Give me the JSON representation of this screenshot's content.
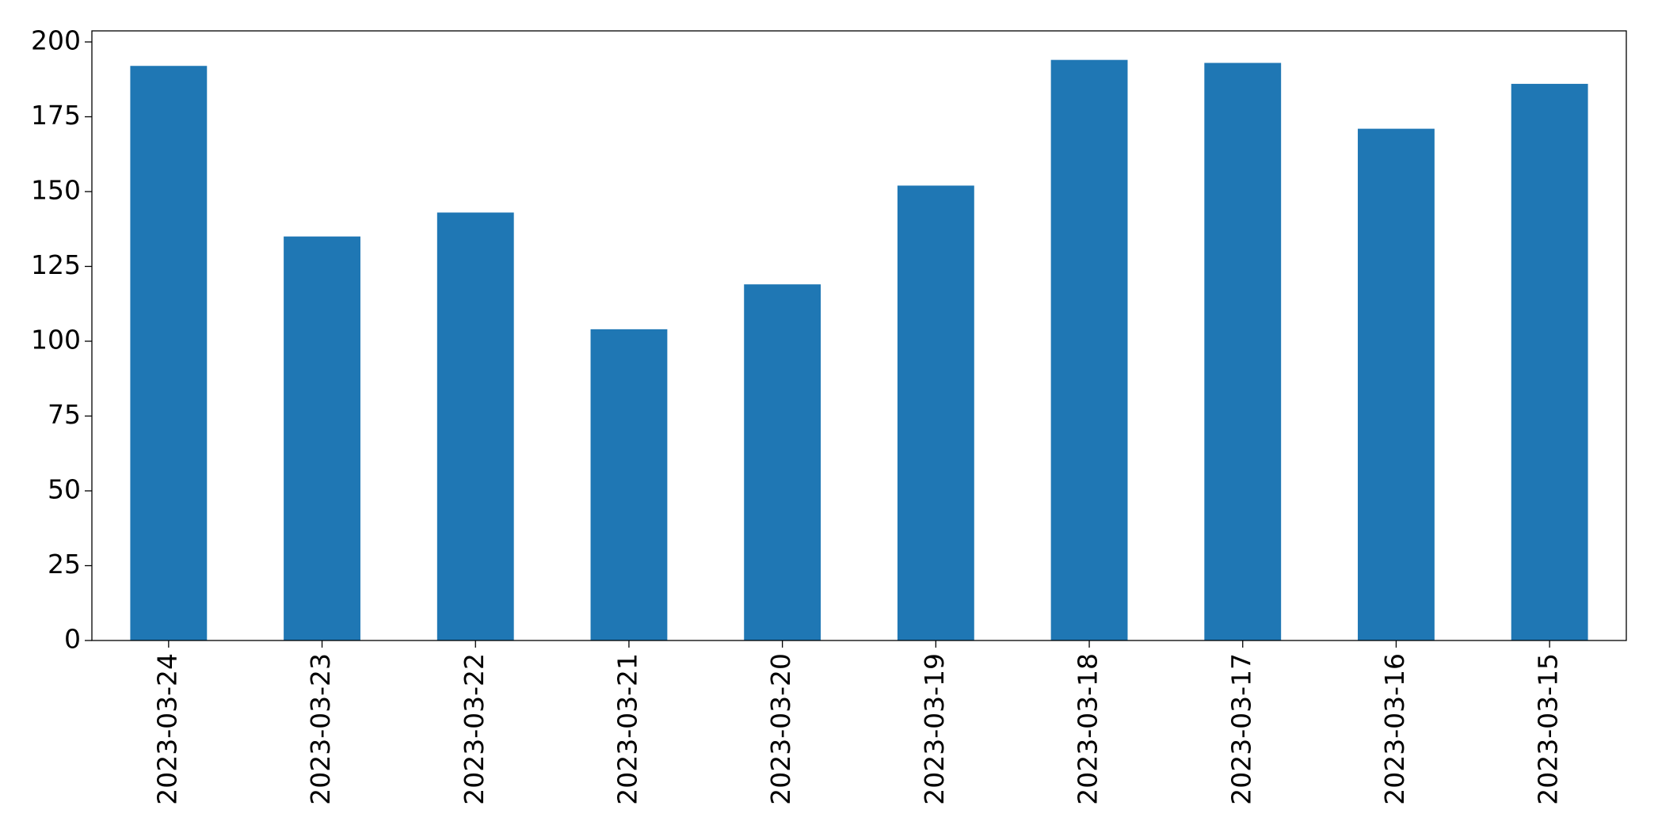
{
  "chart_data": {
    "type": "bar",
    "categories": [
      "2023-03-24",
      "2023-03-23",
      "2023-03-22",
      "2023-03-21",
      "2023-03-20",
      "2023-03-19",
      "2023-03-18",
      "2023-03-17",
      "2023-03-16",
      "2023-03-15"
    ],
    "values": [
      192,
      135,
      143,
      104,
      119,
      152,
      194,
      193,
      171,
      186
    ],
    "color": "#1f77b4",
    "ylim": [
      0,
      203.7
    ],
    "yticks": [
      0,
      25,
      50,
      75,
      100,
      125,
      150,
      175,
      200
    ],
    "grid": false
  }
}
